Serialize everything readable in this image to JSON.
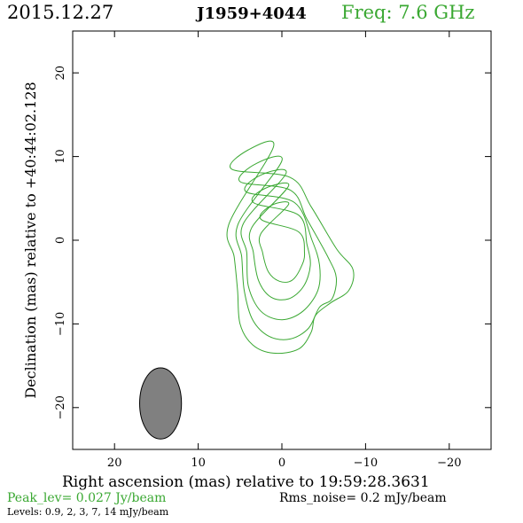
{
  "header": {
    "date": "2015.12.27",
    "source": "J1959+4044",
    "freq": "Freq: 7.6 GHz"
  },
  "footer": {
    "peak": "Peak_lev=  0.027 Jy/beam",
    "rms": "Rms_noise=   0.2 mJy/beam",
    "levels": "Levels: 0.9,    2,    3,    7,   14 mJy/beam"
  },
  "colors": {
    "contour": "#3aa832",
    "beam": "#808080",
    "freq_text": "#3aa832"
  },
  "chart_data": {
    "type": "contour",
    "xlabel": "Right ascension (mas) relative to 19:59:28.3631",
    "ylabel": "Declination (mas) relative to +40:44:02.128",
    "xlim": [
      25,
      -25
    ],
    "ylim": [
      -25,
      25
    ],
    "xticks": [
      20,
      10,
      0,
      -10,
      -20
    ],
    "yticks": [
      20,
      10,
      0,
      -10,
      -20
    ],
    "contour_levels_mJy": [
      0.9,
      2,
      3,
      7,
      14
    ],
    "contours": [
      {
        "level": 0.9,
        "points": [
          [
            1.0,
            11.2
          ],
          [
            4.0,
            10.8
          ],
          [
            6.0,
            8.5
          ],
          [
            -1.0,
            7.5
          ],
          [
            -3.5,
            4.0
          ],
          [
            -6.5,
            -1.0
          ],
          [
            -8.5,
            -3.5
          ],
          [
            -8.0,
            -6.0
          ],
          [
            -5.8,
            -7.5
          ],
          [
            -4.0,
            -9.0
          ],
          [
            -3.5,
            -11.0
          ],
          [
            -2.0,
            -13.0
          ],
          [
            1.0,
            -13.5
          ],
          [
            3.5,
            -12.5
          ],
          [
            5.0,
            -10.0
          ],
          [
            5.3,
            -6.0
          ],
          [
            5.7,
            -2.0
          ],
          [
            6.3,
            2.0
          ]
        ]
      },
      {
        "level": 2,
        "points": [
          [
            0.0,
            9.5
          ],
          [
            3.0,
            9.2
          ],
          [
            5.0,
            7.0
          ],
          [
            -1.0,
            6.0
          ],
          [
            -3.0,
            2.5
          ],
          [
            -5.5,
            -2.0
          ],
          [
            -6.5,
            -4.5
          ],
          [
            -6.0,
            -7.0
          ],
          [
            -4.5,
            -8.0
          ],
          [
            -3.2,
            -10.5
          ],
          [
            -1.0,
            -11.8
          ],
          [
            1.5,
            -11.5
          ],
          [
            3.5,
            -9.5
          ],
          [
            4.5,
            -6.0
          ],
          [
            4.8,
            -2.0
          ],
          [
            5.2,
            2.0
          ]
        ]
      },
      {
        "level": 3,
        "points": [
          [
            -0.5,
            8.0
          ],
          [
            2.5,
            7.8
          ],
          [
            4.3,
            5.8
          ],
          [
            -1.5,
            4.5
          ],
          [
            -3.6,
            0.0
          ],
          [
            -4.5,
            -3.0
          ],
          [
            -4.3,
            -6.0
          ],
          [
            -2.5,
            -8.5
          ],
          [
            0.0,
            -9.5
          ],
          [
            2.5,
            -8.5
          ],
          [
            4.0,
            -5.5
          ],
          [
            4.2,
            -1.5
          ],
          [
            4.6,
            2.0
          ]
        ]
      },
      {
        "level": 7,
        "points": [
          [
            -0.8,
            6.5
          ],
          [
            2.0,
            6.2
          ],
          [
            3.4,
            4.5
          ],
          [
            -2.0,
            3.0
          ],
          [
            -3.0,
            -0.5
          ],
          [
            -3.4,
            -3.0
          ],
          [
            -2.6,
            -5.5
          ],
          [
            -0.8,
            -7.0
          ],
          [
            1.3,
            -6.8
          ],
          [
            2.8,
            -4.8
          ],
          [
            3.4,
            -1.5
          ],
          [
            3.6,
            1.5
          ]
        ]
      },
      {
        "level": 14,
        "points": [
          [
            -0.8,
            4.3
          ],
          [
            1.2,
            4.2
          ],
          [
            2.5,
            2.5
          ],
          [
            -2.0,
            1.0
          ],
          [
            -2.7,
            -1.5
          ],
          [
            -2.3,
            -3.2
          ],
          [
            -1.2,
            -4.8
          ],
          [
            0.3,
            -4.9
          ],
          [
            1.6,
            -3.8
          ],
          [
            2.3,
            -1.5
          ],
          [
            2.5,
            0.8
          ]
        ]
      }
    ],
    "beam": {
      "center": [
        14.5,
        -19.5
      ],
      "major_axis_mas": 8.5,
      "minor_axis_mas": 5.0,
      "position_angle_deg": 0
    }
  }
}
